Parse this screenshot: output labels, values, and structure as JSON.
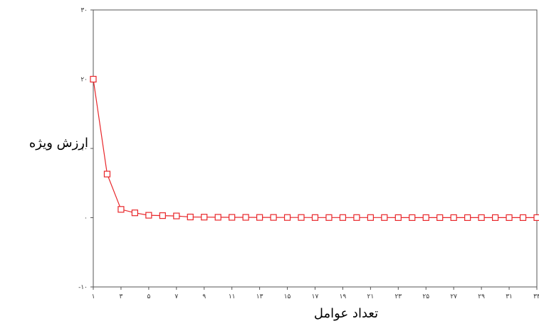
{
  "chart_data": {
    "type": "line",
    "xlabel": "تعداد عوامل",
    "ylabel": "ارزش ویژه",
    "xlim": [
      1,
      33
    ],
    "ylim": [
      -10,
      30
    ],
    "grid": false,
    "y_ticks": [
      {
        "value": 30,
        "label": "۳۰"
      },
      {
        "value": 20,
        "label": "۲۰"
      },
      {
        "value": 10,
        "label": "۱۰"
      },
      {
        "value": 0,
        "label": "۰"
      },
      {
        "value": -10,
        "label": "-۱۰"
      }
    ],
    "x_ticks": [
      {
        "value": 1,
        "label": "۱"
      },
      {
        "value": 3,
        "label": "۳"
      },
      {
        "value": 5,
        "label": "۵"
      },
      {
        "value": 7,
        "label": "۷"
      },
      {
        "value": 9,
        "label": "۹"
      },
      {
        "value": 11,
        "label": "۱۱"
      },
      {
        "value": 13,
        "label": "۱۳"
      },
      {
        "value": 15,
        "label": "۱۵"
      },
      {
        "value": 17,
        "label": "۱۷"
      },
      {
        "value": 19,
        "label": "۱۹"
      },
      {
        "value": 21,
        "label": "۲۱"
      },
      {
        "value": 23,
        "label": "۲۳"
      },
      {
        "value": 25,
        "label": "۲۵"
      },
      {
        "value": 27,
        "label": "۲۷"
      },
      {
        "value": 29,
        "label": "۲۹"
      },
      {
        "value": 31,
        "label": "۳۱"
      },
      {
        "value": 33,
        "label": "۳۳"
      }
    ],
    "series": [
      {
        "color": "#e8262a",
        "marker": "square",
        "x": [
          1,
          2,
          3,
          4,
          5,
          6,
          7,
          8,
          9,
          10,
          11,
          12,
          13,
          14,
          15,
          16,
          17,
          18,
          19,
          20,
          21,
          22,
          23,
          24,
          25,
          26,
          27,
          28,
          29,
          30,
          31,
          32,
          33
        ],
        "y": [
          20,
          6.3,
          1.2,
          0.7,
          0.35,
          0.3,
          0.25,
          0.1,
          0.08,
          0.06,
          0.05,
          0.05,
          0.04,
          0.04,
          0.03,
          0.03,
          0.02,
          0.02,
          0.02,
          0.02,
          0.02,
          0.02,
          0.01,
          0.01,
          0.01,
          0.01,
          0.01,
          0.01,
          0.01,
          0.01,
          0.01,
          0.01,
          0.01
        ]
      }
    ]
  }
}
